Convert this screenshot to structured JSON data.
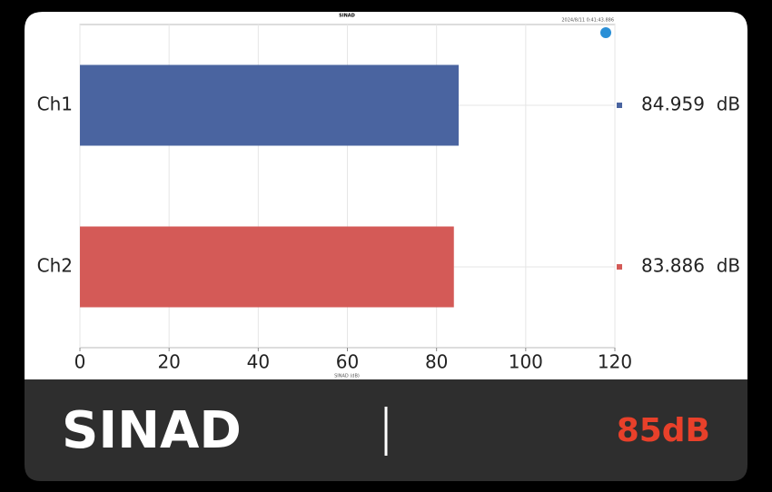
{
  "chart_data": {
    "type": "hbar",
    "title": "SINAD",
    "timestamp": "2024/8/11 0:41:43.886",
    "x_label": "SINAD (dB)",
    "categories": [
      "Ch1",
      "Ch2"
    ],
    "series": [
      {
        "name": "SINAD",
        "colors": [
          "#4a64a0",
          "#d45a57"
        ],
        "values": [
          84.959,
          83.886
        ],
        "value_labels": [
          "84.959  dB",
          "83.886  dB"
        ]
      }
    ],
    "xlim": [
      0,
      120
    ],
    "xticks": [
      0,
      20,
      40,
      60,
      80,
      100,
      120
    ],
    "grid": true
  },
  "footer": {
    "label": "SINAD",
    "value": "85dB"
  }
}
